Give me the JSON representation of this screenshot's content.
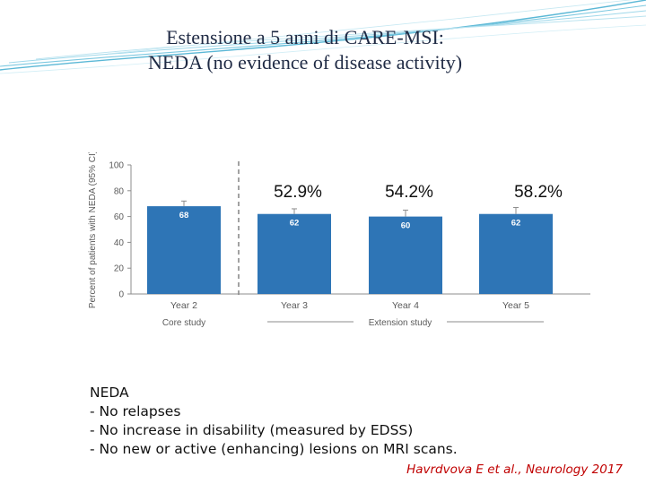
{
  "slide": {
    "title_line1": "Estensione a 5 anni di CARE-MSI:",
    "title_line2": "NEDA  (no evidence of disease activity)",
    "note_heading": "NEDA",
    "note_items": [
      "- No relapses",
      "- No increase in disability (measured by EDSS)",
      "- No new or active (enhancing) lesions on MRI scans."
    ],
    "citation": "Havrdvova E et al., Neurology 2017"
  },
  "colors": {
    "bar": "#2e75b6",
    "axis": "#8c8c8c",
    "text": "#5a5a5a",
    "title": "#1f2a44",
    "citation": "#c00000",
    "swoosh": "#5bb8d6"
  },
  "chart_data": {
    "type": "bar",
    "ylabel": "Percent of patients with NEDA (95% CI)",
    "ylim": [
      0,
      100
    ],
    "yticks": [
      0,
      20,
      40,
      60,
      80,
      100
    ],
    "categories": [
      "Year 2",
      "Year 3",
      "Year 4",
      "Year 5"
    ],
    "values": [
      68,
      62,
      60,
      62
    ],
    "value_labels": [
      "68",
      "62",
      "60",
      "62"
    ],
    "ci_upper": [
      72,
      66,
      65,
      67
    ],
    "group_labels": [
      "Core study",
      "Extension study"
    ],
    "annotations": [
      "52.9%",
      "54.2%",
      "58.2%"
    ],
    "grid": false
  }
}
